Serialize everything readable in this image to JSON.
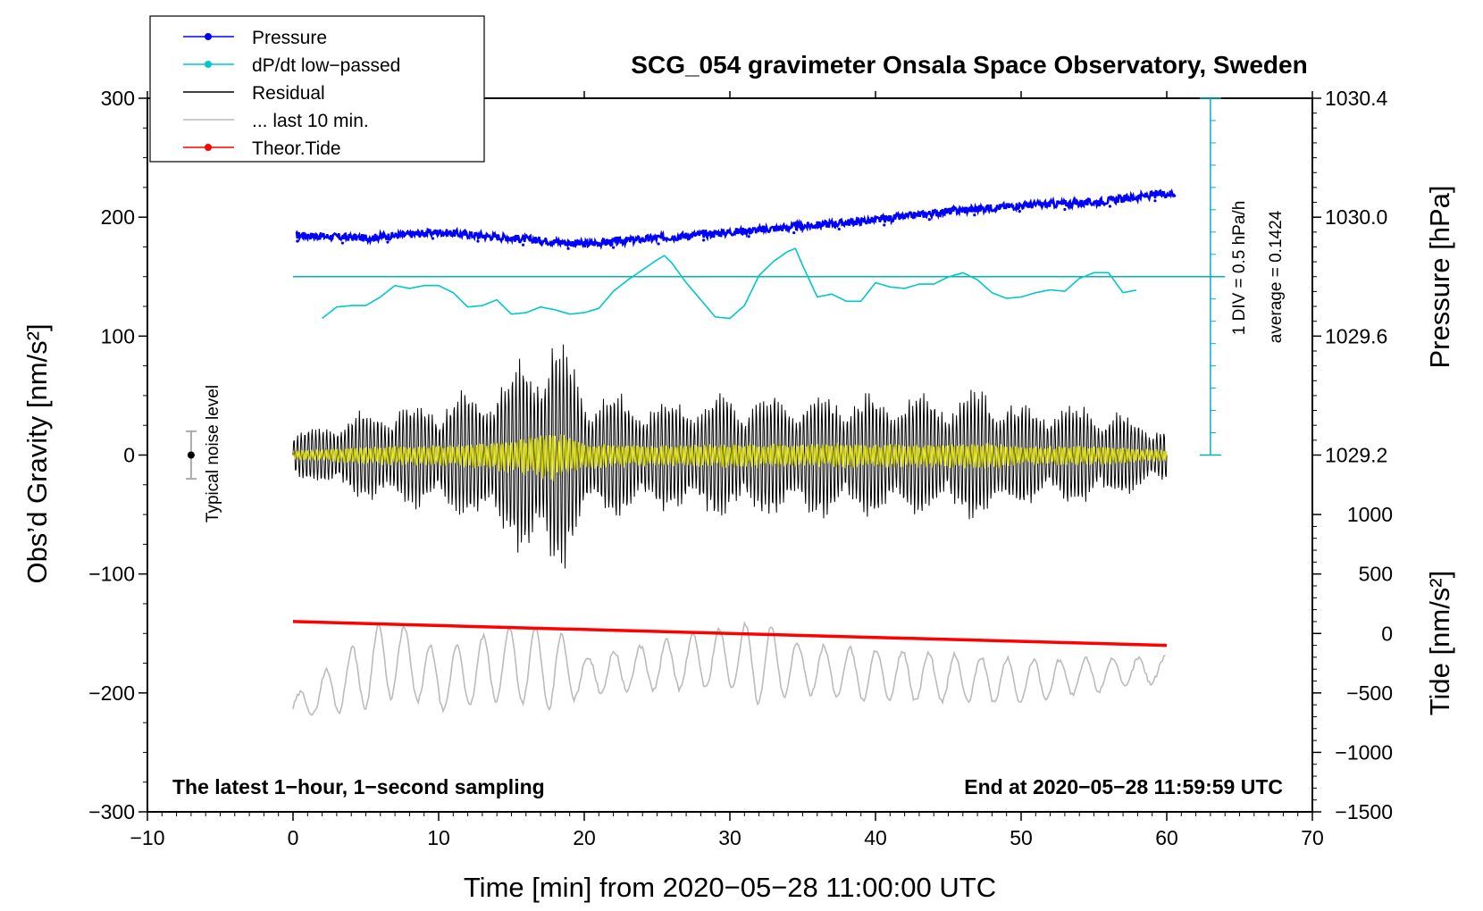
{
  "chart_data": {
    "type": "line",
    "title": "SCG_054 gravimeter Onsala Space Observatory, Sweden",
    "xlabel": "Time [min] from 2020−05−28 11:00:00 UTC",
    "ylabel_left": "Obs’d Gravity [nm/s²]",
    "ylabel_right_top": "Pressure [hPa]",
    "ylabel_right_bottom": "Tide [nm/s²]",
    "xlim": [
      -10,
      70
    ],
    "ylim": [
      -300,
      300
    ],
    "pressure_ylim": [
      1029.2,
      1030.4
    ],
    "tide_ylim": [
      -1500,
      1000
    ],
    "x_ticks": [
      -10,
      0,
      10,
      20,
      30,
      40,
      50,
      60,
      70
    ],
    "x_tick_labels": [
      "−10",
      "0",
      "10",
      "20",
      "30",
      "40",
      "50",
      "60",
      "70"
    ],
    "y_ticks": [
      -300,
      -200,
      -100,
      0,
      100,
      200,
      300
    ],
    "y_tick_labels": [
      "−300",
      "−200",
      "−100",
      "0",
      "100",
      "200",
      "300"
    ],
    "pressure_ticks": [
      1029.2,
      1029.6,
      1030.0,
      1030.4
    ],
    "pressure_tick_labels": [
      "1029.2",
      "1029.6",
      "1030.0",
      "1030.4"
    ],
    "tide_ticks": [
      -1500,
      -1000,
      -500,
      0,
      500,
      1000
    ],
    "tide_tick_labels": [
      "−1500",
      "−1000",
      "−500",
      "0",
      "500",
      "1000"
    ],
    "legend": [
      {
        "label": "Pressure",
        "color": "#0000ff",
        "marker": true
      },
      {
        "label": "dP/dt low−passed",
        "color": "#00c8c8",
        "marker": true
      },
      {
        "label": "Residual",
        "color": "#000000",
        "marker": false
      },
      {
        "label": "... last 10 min.",
        "color": "#bbbbbb",
        "marker": false
      },
      {
        "label": "Theor.Tide",
        "color": "#ff0000",
        "marker": true
      }
    ],
    "series": [
      {
        "name": "Pressure",
        "color": "#0000ff",
        "unit": "hPa",
        "x": [
          0,
          5,
          10,
          15,
          20,
          25,
          30,
          35,
          40,
          45,
          50,
          55,
          60
        ],
        "values": [
          1029.94,
          1029.93,
          1029.95,
          1029.93,
          1029.91,
          1029.93,
          1029.95,
          1029.97,
          1029.99,
          1030.02,
          1030.04,
          1030.05,
          1030.08
        ]
      },
      {
        "name": "dP/dt low-passed",
        "color": "#00c8c8",
        "unit": "hPa/h",
        "x": [
          2,
          3,
          4,
          5,
          6,
          7,
          8,
          9,
          10,
          11,
          12,
          13,
          14,
          15,
          16,
          17,
          18,
          19,
          20,
          21,
          22,
          23,
          24,
          25,
          25.5,
          26,
          27,
          28,
          29,
          30,
          31,
          32,
          33,
          34,
          34.5,
          35,
          36,
          37,
          38,
          39,
          40,
          41,
          42,
          43,
          44,
          45,
          46,
          47,
          48,
          49,
          50,
          51,
          52,
          53,
          54,
          55,
          56,
          57,
          58
        ],
        "values": [
          -0.15,
          -0.07,
          -0.06,
          -0.06,
          0.0,
          0.08,
          0.06,
          0.08,
          0.08,
          0.03,
          -0.07,
          -0.06,
          -0.02,
          -0.12,
          -0.11,
          -0.07,
          -0.09,
          -0.12,
          -0.11,
          -0.08,
          0.04,
          0.12,
          0.19,
          0.26,
          0.29,
          0.24,
          0.1,
          -0.02,
          -0.14,
          -0.15,
          -0.06,
          0.15,
          0.25,
          0.32,
          0.34,
          0.22,
          0.0,
          0.02,
          -0.03,
          -0.03,
          0.1,
          0.07,
          0.06,
          0.09,
          0.09,
          0.14,
          0.17,
          0.12,
          0.03,
          -0.01,
          0.0,
          0.03,
          0.05,
          0.04,
          0.13,
          0.17,
          0.17,
          0.03,
          0.05
        ]
      },
      {
        "name": "Residual",
        "color": "#000000",
        "unit": "nm/s²",
        "x": [
          0,
          5,
          10,
          13,
          15,
          17,
          18,
          19,
          20,
          25,
          30,
          35,
          40,
          45,
          48,
          50,
          55,
          60
        ],
        "amplitude": [
          20,
          40,
          50,
          60,
          80,
          100,
          115,
          90,
          60,
          50,
          55,
          55,
          55,
          55,
          60,
          45,
          45,
          25
        ]
      },
      {
        "name": "... last 10 min.",
        "color": "#bbbbbb",
        "unit": "nm/s²",
        "x": [
          0,
          7,
          10,
          15,
          20,
          30,
          35,
          40,
          50,
          60
        ],
        "values": [
          -213,
          -170,
          -190,
          -175,
          -185,
          -170,
          -180,
          -185,
          -190,
          -180
        ]
      },
      {
        "name": "Theor.Tide",
        "color": "#ff0000",
        "unit": "nm/s²",
        "x": [
          0,
          60
        ],
        "values": [
          100,
          -100
        ]
      }
    ],
    "reference_line": {
      "label": "average = 0.1424",
      "value": 0.1424,
      "unit": "hPa/h"
    },
    "scale_bar": {
      "label": "1 DIV = 0.5 hPa/h",
      "value": 0.5,
      "unit": "hPa/h"
    },
    "noise_bar": {
      "label": "Typical noise level",
      "x": -7,
      "center": 0,
      "half_range": 20
    },
    "annotations": {
      "bottom_left": "The latest 1−hour, 1−second sampling",
      "bottom_right": "End at 2020−05−28 11:59:59 UTC"
    }
  }
}
